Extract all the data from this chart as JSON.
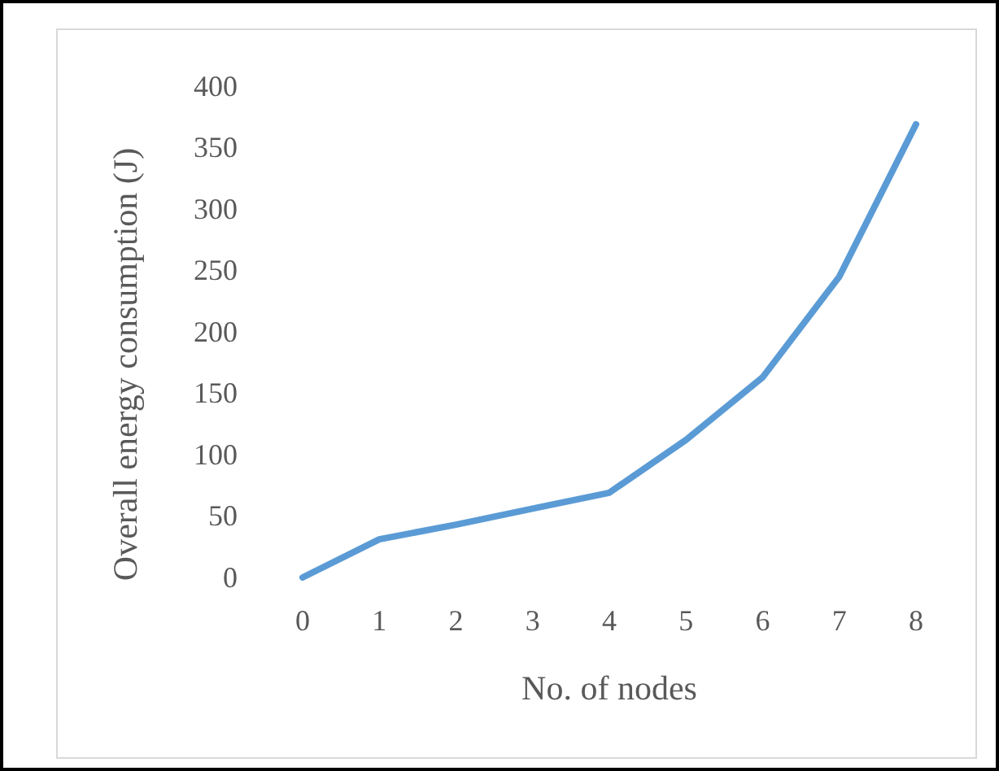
{
  "chart_data": {
    "type": "line",
    "xlabel": "No. of nodes",
    "ylabel": "Overall energy consumption (J)",
    "categories": [
      "0",
      "1",
      "2",
      "3",
      "4",
      "5",
      "6",
      "7",
      "8"
    ],
    "series": [
      {
        "color": "#5b9bd5",
        "values": [
          0,
          31,
          43,
          56,
          69,
          112,
          163,
          245,
          369
        ]
      }
    ],
    "ylim": [
      0,
      400
    ],
    "yticks": [
      0,
      50,
      100,
      150,
      200,
      250,
      300,
      350,
      400
    ],
    "grid": false,
    "marker": "none",
    "line_style": "solid"
  }
}
